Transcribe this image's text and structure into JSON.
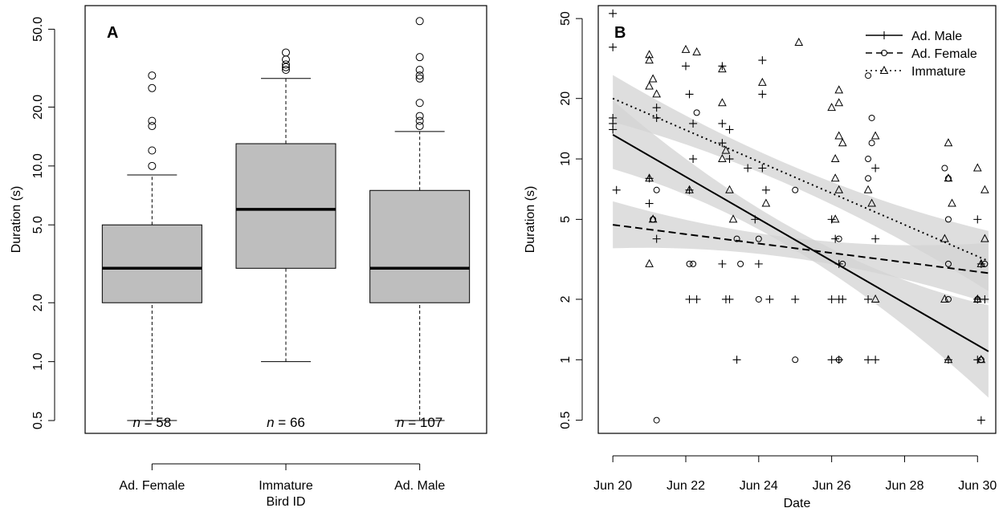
{
  "chart_data": [
    {
      "type": "box",
      "panel_label": "A",
      "xlabel": "Bird ID",
      "ylabel": "Duration (s)",
      "yscale": "log",
      "ylim": [
        0.43,
        66
      ],
      "yticks": [
        0.5,
        1.0,
        2.0,
        5.0,
        10.0,
        20.0,
        50.0
      ],
      "ytick_labels": [
        "0.5",
        "1.0",
        "2.0",
        "5.0",
        "10.0",
        "20.0",
        "50.0"
      ],
      "box_fill": "#bebebe",
      "boxes": [
        {
          "category": "Ad. Female",
          "n_label": "= 58",
          "whisker_low": 0.5,
          "q1": 2,
          "median": 3,
          "q3": 5,
          "whisker_high": 9,
          "outliers": [
            10,
            12,
            16,
            17,
            25,
            29
          ]
        },
        {
          "category": "Immature",
          "n_label": "= 66",
          "whisker_low": 1,
          "q1": 3,
          "median": 6,
          "q3": 13,
          "whisker_high": 28,
          "outliers": [
            31,
            32,
            33,
            35,
            38
          ]
        },
        {
          "category": "Ad. Male",
          "n_label": "= 107",
          "whisker_low": 0.5,
          "q1": 2,
          "median": 3,
          "q3": 7.5,
          "whisker_high": 15,
          "outliers": [
            16,
            17,
            18,
            21,
            28,
            29,
            31,
            36,
            55
          ]
        }
      ]
    },
    {
      "type": "scatter",
      "panel_label": "B",
      "xlabel": "Date",
      "ylabel": "Duration (s)",
      "yscale": "log",
      "ylim": [
        0.43,
        58
      ],
      "xlim": [
        "Jun 19.6",
        "Jun 30.5"
      ],
      "yticks": [
        0.5,
        1,
        2,
        5,
        10,
        20,
        50
      ],
      "ytick_labels": [
        "0.5",
        "1",
        "2",
        "5",
        "10",
        "20",
        "50"
      ],
      "xticks": [
        "Jun 20",
        "Jun 22",
        "Jun 24",
        "Jun 26",
        "Jun 28",
        "Jun 30"
      ],
      "legend_position": "top-right",
      "band_color": "#d3d3d3",
      "series": [
        {
          "name": "Ad. Male",
          "marker": "plus",
          "line": "solid",
          "fit": [
            [
              20.0,
              13.2
            ],
            [
              30.3,
              1.1
            ]
          ],
          "points": [
            [
              20.0,
              53
            ],
            [
              20.0,
              36
            ],
            [
              20.0,
              16
            ],
            [
              20.0,
              15
            ],
            [
              20.0,
              14
            ],
            [
              20.1,
              7
            ],
            [
              21.0,
              8
            ],
            [
              21.0,
              6
            ],
            [
              21.2,
              18
            ],
            [
              21.2,
              16
            ],
            [
              21.2,
              4
            ],
            [
              22.0,
              29
            ],
            [
              22.1,
              21
            ],
            [
              22.2,
              15
            ],
            [
              22.2,
              10
            ],
            [
              22.1,
              7
            ],
            [
              22.1,
              2
            ],
            [
              22.3,
              2
            ],
            [
              23.0,
              29
            ],
            [
              23.0,
              15
            ],
            [
              23.2,
              14
            ],
            [
              23.0,
              12
            ],
            [
              23.2,
              10
            ],
            [
              23.0,
              3
            ],
            [
              23.1,
              2
            ],
            [
              23.2,
              2
            ],
            [
              23.4,
              1
            ],
            [
              23.7,
              9
            ],
            [
              23.9,
              5
            ],
            [
              24.1,
              31
            ],
            [
              24.1,
              21
            ],
            [
              24.1,
              9
            ],
            [
              24.2,
              7
            ],
            [
              24.0,
              3
            ],
            [
              24.3,
              2
            ],
            [
              25.0,
              2
            ],
            [
              26.0,
              5
            ],
            [
              26.1,
              4
            ],
            [
              26.2,
              3
            ],
            [
              26.0,
              2
            ],
            [
              26.2,
              2
            ],
            [
              26.3,
              2
            ],
            [
              26.0,
              1
            ],
            [
              26.2,
              1
            ],
            [
              27.2,
              9
            ],
            [
              27.2,
              4
            ],
            [
              27.0,
              2
            ],
            [
              27.0,
              1
            ],
            [
              27.2,
              1
            ],
            [
              29.2,
              1
            ],
            [
              30.0,
              5
            ],
            [
              30.1,
              3
            ],
            [
              30.0,
              2
            ],
            [
              30.2,
              2
            ],
            [
              30.0,
              1
            ],
            [
              30.1,
              0.5
            ]
          ]
        },
        {
          "name": "Ad. Female",
          "marker": "circle",
          "line": "dashed",
          "fit": [
            [
              20.0,
              4.7
            ],
            [
              30.3,
              2.7
            ]
          ],
          "points": [
            [
              21.2,
              7
            ],
            [
              21.1,
              5
            ],
            [
              21.2,
              0.5
            ],
            [
              22.1,
              3
            ],
            [
              22.2,
              3
            ],
            [
              22.3,
              17
            ],
            [
              23.4,
              4
            ],
            [
              23.5,
              3
            ],
            [
              24.0,
              4
            ],
            [
              24.0,
              2
            ],
            [
              25.0,
              7
            ],
            [
              25.0,
              1
            ],
            [
              26.2,
              4
            ],
            [
              26.3,
              3
            ],
            [
              26.2,
              1
            ],
            [
              27.0,
              26
            ],
            [
              27.1,
              16
            ],
            [
              27.1,
              12
            ],
            [
              27.0,
              10
            ],
            [
              27.0,
              8
            ],
            [
              29.1,
              9
            ],
            [
              29.2,
              8
            ],
            [
              29.2,
              5
            ],
            [
              29.2,
              3
            ],
            [
              29.2,
              2
            ],
            [
              30.2,
              3
            ],
            [
              30.0,
              2
            ],
            [
              30.1,
              1
            ]
          ]
        },
        {
          "name": "Immature",
          "marker": "triangle",
          "line": "dotted",
          "fit": [
            [
              20.0,
              20
            ],
            [
              30.3,
              3.1
            ]
          ],
          "points": [
            [
              21.0,
              33
            ],
            [
              21.0,
              31
            ],
            [
              21.0,
              23
            ],
            [
              21.1,
              25
            ],
            [
              21.2,
              21
            ],
            [
              21.0,
              8
            ],
            [
              21.1,
              5
            ],
            [
              21.0,
              3
            ],
            [
              22.0,
              35
            ],
            [
              22.3,
              34
            ],
            [
              22.1,
              7
            ],
            [
              23.0,
              28
            ],
            [
              23.0,
              19
            ],
            [
              23.1,
              11
            ],
            [
              23.0,
              10
            ],
            [
              23.2,
              7
            ],
            [
              23.3,
              5
            ],
            [
              24.1,
              24
            ],
            [
              24.2,
              6
            ],
            [
              25.1,
              38
            ],
            [
              26.0,
              18
            ],
            [
              26.2,
              22
            ],
            [
              26.2,
              19
            ],
            [
              26.2,
              13
            ],
            [
              26.3,
              12
            ],
            [
              26.1,
              10
            ],
            [
              26.1,
              8
            ],
            [
              26.2,
              7
            ],
            [
              26.1,
              5
            ],
            [
              27.2,
              13
            ],
            [
              27.0,
              7
            ],
            [
              27.1,
              6
            ],
            [
              27.2,
              2
            ],
            [
              29.2,
              12
            ],
            [
              29.2,
              8
            ],
            [
              29.3,
              6
            ],
            [
              29.1,
              4
            ],
            [
              29.1,
              2
            ],
            [
              29.2,
              1
            ],
            [
              30.0,
              9
            ],
            [
              30.2,
              7
            ],
            [
              30.2,
              4
            ],
            [
              30.1,
              3
            ],
            [
              30.0,
              2
            ],
            [
              30.1,
              1
            ]
          ]
        }
      ]
    }
  ]
}
